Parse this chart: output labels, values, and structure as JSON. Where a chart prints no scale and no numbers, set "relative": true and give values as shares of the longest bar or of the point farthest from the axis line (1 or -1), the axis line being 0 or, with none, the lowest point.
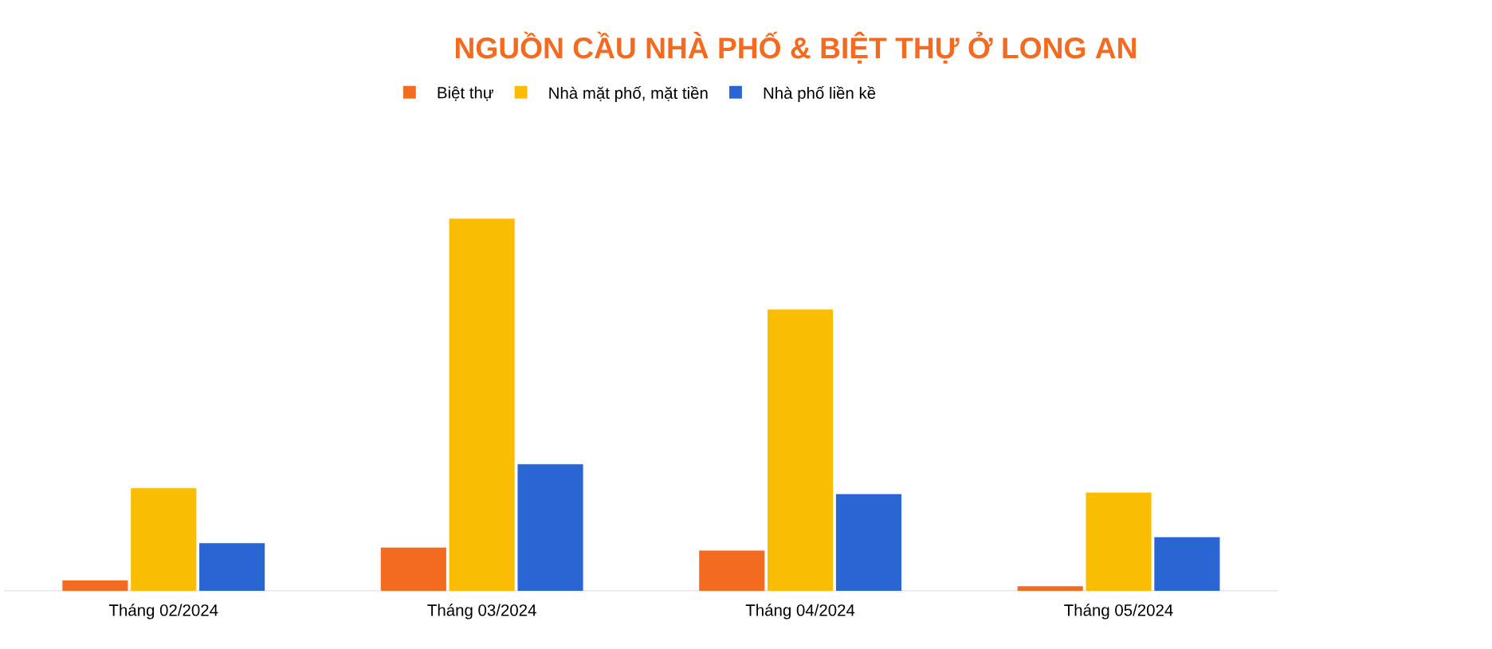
{
  "chart_data": {
    "type": "bar",
    "title": "NGUỒN CẦU NHÀ PHỐ & BIỆT THỰ Ở LONG AN",
    "categories": [
      "Tháng 02/2024",
      "Tháng 03/2024",
      "Tháng 04/2024",
      "Tháng 05/2024"
    ],
    "series": [
      {
        "name": "Biệt thự",
        "color": "#f26b21",
        "values": [
          0.028,
          0.116,
          0.108,
          0.012
        ]
      },
      {
        "name": "Nhà mặt phố, mặt tiền",
        "color": "#fbbc04",
        "values": [
          0.276,
          1,
          0.756,
          0.264
        ]
      },
      {
        "name": "Nhà phố liền kề",
        "color": "#2a65d4",
        "values": [
          0.128,
          0.34,
          0.26,
          0.144
        ]
      }
    ],
    "relative": true,
    "legend": "top"
  }
}
